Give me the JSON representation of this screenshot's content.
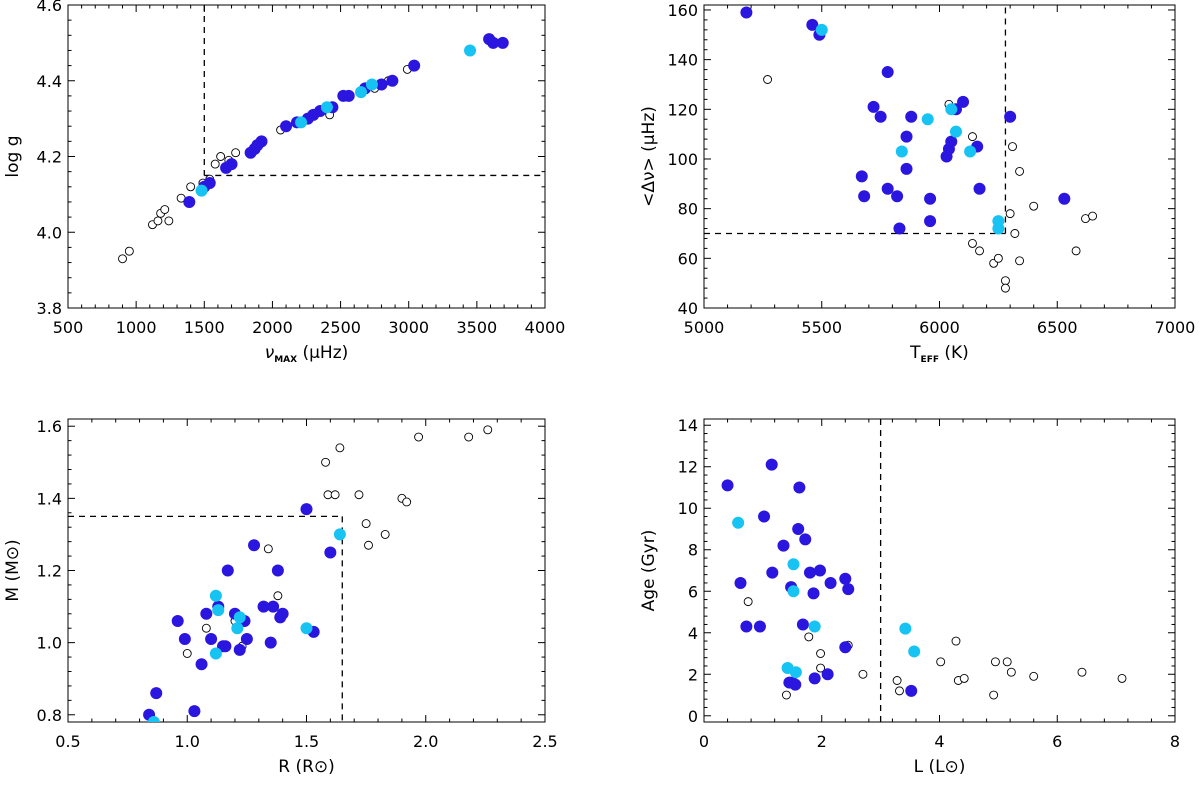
{
  "colors": {
    "dark": "#2a16df",
    "light": "#16c3f2",
    "open": "#000000"
  },
  "chart_data": [
    {
      "id": "p1",
      "type": "scatter",
      "xlabel": {
        "sym": "ν",
        "sub": "MAX",
        "unit": "(μHz)"
      },
      "ylabel": {
        "text": "log g"
      },
      "xlim": [
        500,
        4000
      ],
      "ylim": [
        3.8,
        4.6
      ],
      "xticks": [
        500,
        1000,
        1500,
        2000,
        2500,
        3000,
        3500,
        4000
      ],
      "xtick_labels": [
        "500",
        "1000",
        "1500",
        "2000",
        "2500",
        "3000",
        "3500",
        "4000"
      ],
      "yticks": [
        3.8,
        4.0,
        4.2,
        4.4,
        4.6
      ],
      "ytick_labels": [
        "3.8",
        "4.0",
        "4.2",
        "4.4",
        "4.6"
      ],
      "cutoff_lines": [
        {
          "x": [
            1500,
            1500
          ],
          "y": [
            4.6,
            4.15
          ]
        },
        {
          "x": [
            1500,
            4000
          ],
          "y": [
            4.15,
            4.15
          ]
        }
      ],
      "series": [
        {
          "name": "dark",
          "points": [
            [
              1390,
              4.08
            ],
            [
              1500,
              4.12
            ],
            [
              1540,
              4.13
            ],
            [
              1660,
              4.17
            ],
            [
              1700,
              4.18
            ],
            [
              1840,
              4.21
            ],
            [
              1870,
              4.22
            ],
            [
              1890,
              4.23
            ],
            [
              1920,
              4.24
            ],
            [
              2100,
              4.28
            ],
            [
              2180,
              4.29
            ],
            [
              2260,
              4.3
            ],
            [
              2300,
              4.31
            ],
            [
              2350,
              4.32
            ],
            [
              2440,
              4.33
            ],
            [
              2520,
              4.36
            ],
            [
              2560,
              4.36
            ],
            [
              2680,
              4.38
            ],
            [
              2800,
              4.39
            ],
            [
              2880,
              4.4
            ],
            [
              3040,
              4.44
            ],
            [
              3590,
              4.51
            ],
            [
              3620,
              4.5
            ],
            [
              3690,
              4.5
            ]
          ]
        },
        {
          "name": "light",
          "points": [
            [
              1480,
              4.11
            ],
            [
              2210,
              4.29
            ],
            [
              2400,
              4.33
            ],
            [
              2650,
              4.37
            ],
            [
              2730,
              4.39
            ],
            [
              3450,
              4.48
            ]
          ]
        },
        {
          "name": "open",
          "points": [
            [
              900,
              3.93
            ],
            [
              950,
              3.95
            ],
            [
              1120,
              4.02
            ],
            [
              1160,
              4.03
            ],
            [
              1180,
              4.05
            ],
            [
              1210,
              4.06
            ],
            [
              1240,
              4.03
            ],
            [
              1330,
              4.09
            ],
            [
              1400,
              4.12
            ],
            [
              1490,
              4.13
            ],
            [
              1540,
              4.14
            ],
            [
              1580,
              4.18
            ],
            [
              1620,
              4.2
            ],
            [
              1680,
              4.19
            ],
            [
              1730,
              4.21
            ],
            [
              2060,
              4.27
            ],
            [
              2420,
              4.31
            ],
            [
              2750,
              4.38
            ],
            [
              2850,
              4.4
            ],
            [
              2990,
              4.43
            ]
          ]
        }
      ]
    },
    {
      "id": "p2",
      "type": "scatter",
      "xlabel": {
        "sym": "T",
        "sub": "EFF",
        "unit": "(K)"
      },
      "ylabel": {
        "text": "<Δν> (μHz)"
      },
      "xlim": [
        5000,
        7000
      ],
      "ylim": [
        40,
        162
      ],
      "xticks": [
        5000,
        5500,
        6000,
        6500,
        7000
      ],
      "xtick_labels": [
        "5000",
        "5500",
        "6000",
        "6500",
        "7000"
      ],
      "yticks": [
        40,
        60,
        80,
        100,
        120,
        140,
        160
      ],
      "ytick_labels": [
        "40",
        "60",
        "80",
        "100",
        "120",
        "140",
        "160"
      ],
      "cutoff_lines": [
        {
          "x": [
            5000,
            6280
          ],
          "y": [
            70,
            70
          ]
        },
        {
          "x": [
            6280,
            6280
          ],
          "y": [
            70,
            162
          ]
        }
      ],
      "series": [
        {
          "name": "dark",
          "points": [
            [
              5180,
              159
            ],
            [
              5460,
              154
            ],
            [
              5490,
              150
            ],
            [
              5670,
              93
            ],
            [
              5680,
              85
            ],
            [
              5720,
              121
            ],
            [
              5750,
              117
            ],
            [
              5780,
              135
            ],
            [
              5780,
              88
            ],
            [
              5820,
              85
            ],
            [
              5830,
              72
            ],
            [
              5860,
              109
            ],
            [
              5860,
              96
            ],
            [
              5880,
              117
            ],
            [
              5960,
              84
            ],
            [
              5960,
              75
            ],
            [
              6030,
              101
            ],
            [
              6040,
              104
            ],
            [
              6050,
              107
            ],
            [
              6070,
              120
            ],
            [
              6100,
              123
            ],
            [
              6160,
              105
            ],
            [
              6170,
              88
            ],
            [
              6300,
              117
            ],
            [
              6530,
              84
            ]
          ]
        },
        {
          "name": "light",
          "points": [
            [
              5500,
              152
            ],
            [
              5840,
              103
            ],
            [
              5950,
              116
            ],
            [
              6050,
              120
            ],
            [
              6070,
              111
            ],
            [
              6130,
              103
            ],
            [
              6250,
              75
            ],
            [
              6250,
              72
            ]
          ]
        },
        {
          "name": "open",
          "points": [
            [
              5270,
              132
            ],
            [
              6040,
              122
            ],
            [
              6140,
              109
            ],
            [
              6140,
              66
            ],
            [
              6170,
              63
            ],
            [
              6230,
              58
            ],
            [
              6250,
              60
            ],
            [
              6280,
              51
            ],
            [
              6280,
              48
            ],
            [
              6300,
              78
            ],
            [
              6310,
              105
            ],
            [
              6320,
              70
            ],
            [
              6340,
              95
            ],
            [
              6340,
              59
            ],
            [
              6400,
              81
            ],
            [
              6580,
              63
            ],
            [
              6620,
              76
            ],
            [
              6650,
              77
            ]
          ]
        }
      ]
    },
    {
      "id": "p3",
      "type": "scatter",
      "xlabel": {
        "sym": "R",
        "sub": "",
        "unit": "(R⊙)"
      },
      "ylabel": {
        "text": "M (M⊙)"
      },
      "xlim": [
        0.5,
        2.5
      ],
      "ylim": [
        0.78,
        1.62
      ],
      "xticks": [
        0.5,
        1.0,
        1.5,
        2.0,
        2.5
      ],
      "xtick_labels": [
        "0.5",
        "1.0",
        "1.5",
        "2.0",
        "2.5"
      ],
      "yticks": [
        0.8,
        1.0,
        1.2,
        1.4,
        1.6
      ],
      "ytick_labels": [
        "0.8",
        "1.0",
        "1.2",
        "1.4",
        "1.6"
      ],
      "cutoff_lines": [
        {
          "x": [
            0.5,
            1.65
          ],
          "y": [
            1.35,
            1.35
          ]
        },
        {
          "x": [
            1.65,
            1.65
          ],
          "y": [
            1.35,
            0.78
          ]
        }
      ],
      "series": [
        {
          "name": "dark",
          "points": [
            [
              0.84,
              0.8
            ],
            [
              0.87,
              0.86
            ],
            [
              0.96,
              1.06
            ],
            [
              0.99,
              1.01
            ],
            [
              1.03,
              0.81
            ],
            [
              1.06,
              0.94
            ],
            [
              1.08,
              1.08
            ],
            [
              1.1,
              1.01
            ],
            [
              1.13,
              1.1
            ],
            [
              1.15,
              0.99
            ],
            [
              1.16,
              0.99
            ],
            [
              1.17,
              1.2
            ],
            [
              1.2,
              1.08
            ],
            [
              1.22,
              0.98
            ],
            [
              1.24,
              1.06
            ],
            [
              1.25,
              1.01
            ],
            [
              1.28,
              1.27
            ],
            [
              1.32,
              1.1
            ],
            [
              1.35,
              1.0
            ],
            [
              1.36,
              1.1
            ],
            [
              1.38,
              1.2
            ],
            [
              1.39,
              1.07
            ],
            [
              1.4,
              1.08
            ],
            [
              1.5,
              1.37
            ],
            [
              1.53,
              1.03
            ],
            [
              1.6,
              1.25
            ]
          ]
        },
        {
          "name": "light",
          "points": [
            [
              0.86,
              0.78
            ],
            [
              1.12,
              0.97
            ],
            [
              1.12,
              1.13
            ],
            [
              1.13,
              1.09
            ],
            [
              1.21,
              1.04
            ],
            [
              1.22,
              1.07
            ],
            [
              1.5,
              1.04
            ],
            [
              1.64,
              1.3
            ]
          ]
        },
        {
          "name": "open",
          "points": [
            [
              1.0,
              0.97
            ],
            [
              1.08,
              1.04
            ],
            [
              1.2,
              1.06
            ],
            [
              1.23,
              0.99
            ],
            [
              1.34,
              1.26
            ],
            [
              1.38,
              1.13
            ],
            [
              1.58,
              1.5
            ],
            [
              1.59,
              1.41
            ],
            [
              1.62,
              1.41
            ],
            [
              1.64,
              1.54
            ],
            [
              1.72,
              1.41
            ],
            [
              1.75,
              1.33
            ],
            [
              1.76,
              1.27
            ],
            [
              1.83,
              1.3
            ],
            [
              1.9,
              1.4
            ],
            [
              1.92,
              1.39
            ],
            [
              1.97,
              1.57
            ],
            [
              2.18,
              1.57
            ],
            [
              2.26,
              1.59
            ]
          ]
        }
      ]
    },
    {
      "id": "p4",
      "type": "scatter",
      "xlabel": {
        "sym": "L",
        "sub": "",
        "unit": "(L⊙)"
      },
      "ylabel": {
        "text": "Age (Gyr)"
      },
      "xlim": [
        0,
        8
      ],
      "ylim": [
        -0.3,
        14.3
      ],
      "xticks": [
        0,
        2,
        4,
        6,
        8
      ],
      "xtick_labels": [
        "0",
        "2",
        "4",
        "6",
        "8"
      ],
      "yticks": [
        0,
        2,
        4,
        6,
        8,
        10,
        12,
        14
      ],
      "ytick_labels": [
        "0",
        "2",
        "4",
        "6",
        "8",
        "10",
        "12",
        "14"
      ],
      "cutoff_lines": [
        {
          "x": [
            3.0,
            3.0
          ],
          "y": [
            -0.3,
            14.3
          ]
        }
      ],
      "series": [
        {
          "name": "dark",
          "points": [
            [
              0.4,
              11.1
            ],
            [
              0.62,
              6.4
            ],
            [
              0.72,
              4.3
            ],
            [
              0.95,
              4.3
            ],
            [
              1.02,
              9.6
            ],
            [
              1.15,
              12.1
            ],
            [
              1.16,
              6.9
            ],
            [
              1.35,
              8.2
            ],
            [
              1.45,
              1.6
            ],
            [
              1.48,
              6.2
            ],
            [
              1.5,
              1.6
            ],
            [
              1.55,
              1.5
            ],
            [
              1.6,
              9.0
            ],
            [
              1.62,
              11.0
            ],
            [
              1.68,
              4.4
            ],
            [
              1.72,
              8.5
            ],
            [
              1.8,
              6.9
            ],
            [
              1.86,
              5.9
            ],
            [
              1.88,
              1.8
            ],
            [
              1.97,
              7.0
            ],
            [
              2.1,
              2.0
            ],
            [
              2.15,
              6.4
            ],
            [
              2.4,
              3.3
            ],
            [
              2.4,
              6.6
            ],
            [
              2.45,
              6.1
            ],
            [
              3.52,
              1.2
            ]
          ]
        },
        {
          "name": "light",
          "points": [
            [
              0.58,
              9.3
            ],
            [
              1.42,
              2.3
            ],
            [
              1.52,
              7.3
            ],
            [
              1.52,
              6.0
            ],
            [
              1.56,
              2.1
            ],
            [
              1.88,
              4.3
            ],
            [
              3.42,
              4.2
            ],
            [
              3.57,
              3.1
            ]
          ]
        },
        {
          "name": "open",
          "points": [
            [
              0.75,
              5.5
            ],
            [
              1.4,
              1.0
            ],
            [
              1.78,
              3.8
            ],
            [
              1.98,
              3.0
            ],
            [
              1.98,
              2.3
            ],
            [
              2.45,
              3.4
            ],
            [
              2.7,
              2.0
            ],
            [
              3.28,
              1.7
            ],
            [
              3.32,
              1.2
            ],
            [
              4.02,
              2.6
            ],
            [
              4.28,
              3.6
            ],
            [
              4.32,
              1.7
            ],
            [
              4.42,
              1.8
            ],
            [
              4.92,
              1.0
            ],
            [
              4.95,
              2.6
            ],
            [
              5.15,
              2.6
            ],
            [
              5.22,
              2.1
            ],
            [
              5.6,
              1.9
            ],
            [
              6.42,
              2.1
            ],
            [
              7.1,
              1.8
            ]
          ]
        }
      ]
    }
  ]
}
